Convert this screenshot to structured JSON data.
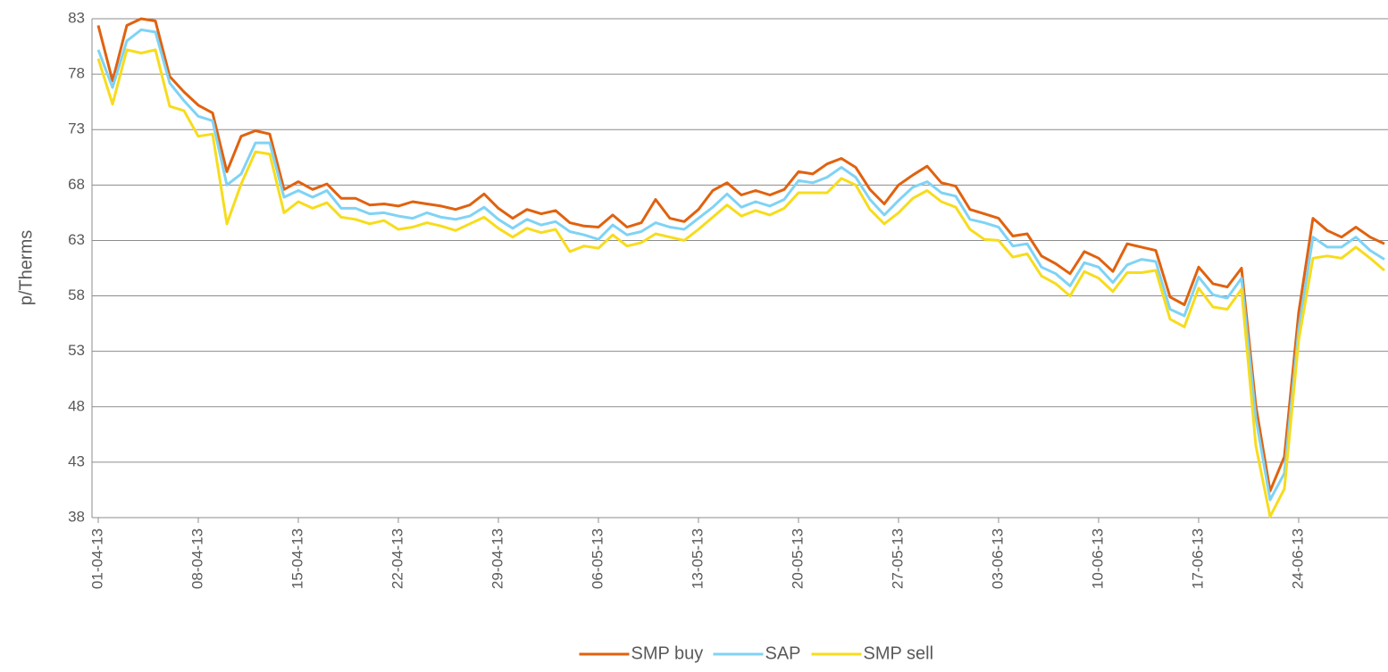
{
  "chart_data": {
    "type": "line",
    "y_label": "p/Therms",
    "categories": [
      "01-04-13",
      null,
      null,
      null,
      null,
      null,
      null,
      "08-04-13",
      null,
      null,
      null,
      null,
      null,
      null,
      "15-04-13",
      null,
      null,
      null,
      null,
      null,
      null,
      "22-04-13",
      null,
      null,
      null,
      null,
      null,
      null,
      "29-04-13",
      null,
      null,
      null,
      null,
      null,
      null,
      "06-05-13",
      null,
      null,
      null,
      null,
      null,
      null,
      "13-05-13",
      null,
      null,
      null,
      null,
      null,
      null,
      "20-05-13",
      null,
      null,
      null,
      null,
      null,
      null,
      "27-05-13",
      null,
      null,
      null,
      null,
      null,
      null,
      "03-06-13",
      null,
      null,
      null,
      null,
      null,
      null,
      "10-06-13",
      null,
      null,
      null,
      null,
      null,
      null,
      "17-06-13",
      null,
      null,
      null,
      null,
      null,
      null,
      "24-06-13",
      null,
      null,
      null,
      null,
      null,
      null
    ],
    "series": [
      {
        "name": "SMP buy",
        "color": "#e0620f",
        "values": [
          82.4,
          77.4,
          82.4,
          83.0,
          82.8,
          77.8,
          76.4,
          75.2,
          74.5,
          69.2,
          72.4,
          72.9,
          72.6,
          67.6,
          68.3,
          67.6,
          68.1,
          66.8,
          66.8,
          66.2,
          66.3,
          66.1,
          66.5,
          66.3,
          66.1,
          65.8,
          66.2,
          67.2,
          65.9,
          65.0,
          65.8,
          65.4,
          65.7,
          64.6,
          64.3,
          64.2,
          65.3,
          64.2,
          64.6,
          66.7,
          65.0,
          64.7,
          65.8,
          67.5,
          68.2,
          67.1,
          67.5,
          67.1,
          67.6,
          69.2,
          69.0,
          69.9,
          70.4,
          69.6,
          67.6,
          66.3,
          68.0,
          68.9,
          69.7,
          68.2,
          67.9,
          65.8,
          65.4,
          65.0,
          63.4,
          63.6,
          61.6,
          60.9,
          60.0,
          62.0,
          61.4,
          60.2,
          62.7,
          62.4,
          62.1,
          57.9,
          57.2,
          60.6,
          59.1,
          58.8,
          60.5,
          48.1,
          40.4,
          43.5,
          56.5,
          65.0,
          63.9,
          63.3,
          64.2,
          63.3,
          62.7
        ]
      },
      {
        "name": "SAP",
        "color": "#7fd3f5",
        "values": [
          80.2,
          76.8,
          81.0,
          82.0,
          81.8,
          77.2,
          75.6,
          74.2,
          73.8,
          68.0,
          69.0,
          71.8,
          71.8,
          66.9,
          67.5,
          66.9,
          67.5,
          65.9,
          65.9,
          65.4,
          65.5,
          65.2,
          65.0,
          65.5,
          65.1,
          64.9,
          65.2,
          66.0,
          64.9,
          64.1,
          64.9,
          64.4,
          64.7,
          63.8,
          63.5,
          63.1,
          64.4,
          63.5,
          63.8,
          64.6,
          64.2,
          64.0,
          65.0,
          66.0,
          67.2,
          66.0,
          66.5,
          66.1,
          66.7,
          68.4,
          68.2,
          68.7,
          69.6,
          68.7,
          66.7,
          65.3,
          66.6,
          67.8,
          68.3,
          67.3,
          67.0,
          64.9,
          64.6,
          64.2,
          62.5,
          62.7,
          60.6,
          60.0,
          58.9,
          61.0,
          60.6,
          59.2,
          60.8,
          61.3,
          61.1,
          56.8,
          56.2,
          59.7,
          58.1,
          57.8,
          59.6,
          47.0,
          39.6,
          42.0,
          55.0,
          63.3,
          62.4,
          62.4,
          63.3,
          62.1,
          61.3
        ]
      },
      {
        "name": "SMP sell",
        "color": "#f7dc1c",
        "values": [
          79.4,
          75.3,
          80.2,
          79.9,
          80.2,
          75.1,
          74.7,
          72.4,
          72.6,
          64.5,
          68.1,
          71.0,
          70.8,
          65.5,
          66.5,
          65.9,
          66.4,
          65.1,
          64.9,
          64.5,
          64.8,
          64.0,
          64.2,
          64.6,
          64.3,
          63.9,
          64.5,
          65.1,
          64.1,
          63.3,
          64.1,
          63.7,
          64.0,
          62.0,
          62.5,
          62.3,
          63.5,
          62.5,
          62.8,
          63.6,
          63.3,
          63.0,
          64.0,
          65.1,
          66.2,
          65.2,
          65.7,
          65.3,
          65.9,
          67.3,
          67.3,
          67.3,
          68.6,
          68.0,
          65.8,
          64.5,
          65.5,
          66.8,
          67.5,
          66.5,
          66.0,
          64.0,
          63.1,
          63.0,
          61.5,
          61.8,
          59.8,
          59.1,
          58.0,
          60.2,
          59.6,
          58.4,
          60.1,
          60.1,
          60.3,
          55.9,
          55.2,
          58.7,
          57.0,
          56.8,
          58.6,
          44.5,
          38.1,
          40.6,
          54.0,
          61.4,
          61.6,
          61.4,
          62.4,
          61.4,
          60.3
        ]
      }
    ],
    "ylim": [
      38,
      83
    ],
    "yticks": [
      38,
      43,
      48,
      53,
      58,
      63,
      68,
      73,
      78,
      83
    ],
    "grid": true,
    "legend": "bottom"
  }
}
